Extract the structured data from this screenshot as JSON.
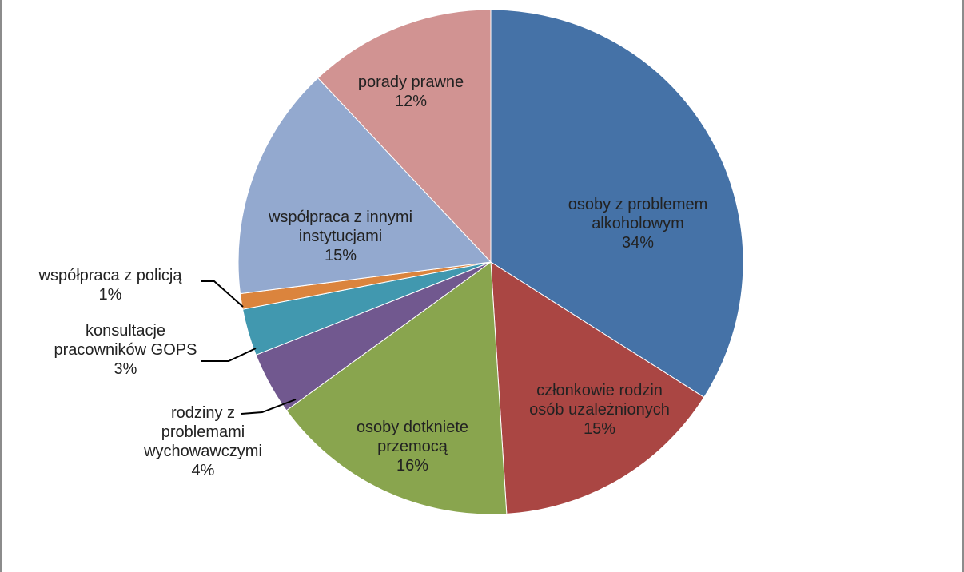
{
  "chart_data": {
    "type": "pie",
    "start_angle_deg": 0,
    "direction": "clockwise",
    "slices": [
      {
        "name": "osoby z problemem alkoholowym",
        "label_lines": [
          "osoby z problemem",
          "alkoholowym",
          "34%"
        ],
        "value": 34,
        "color": "#4572A7"
      },
      {
        "name": "członkowie rodzin osób uzależnionych",
        "label_lines": [
          "członkowie rodzin",
          "osób uzależnionych",
          "15%"
        ],
        "value": 15,
        "color": "#AA4643"
      },
      {
        "name": "osoby dotkniete przemocą",
        "label_lines": [
          "osoby dotkniete",
          "przemocą",
          "16%"
        ],
        "value": 16,
        "color": "#89A54E"
      },
      {
        "name": "rodziny z problemami wychowawczymi",
        "label_lines": [
          "rodziny z",
          "problemami",
          "wychowawczymi",
          "4%"
        ],
        "value": 4,
        "color": "#71588F"
      },
      {
        "name": "konsultacje pracowników GOPS",
        "label_lines": [
          "konsultacje",
          "pracowników GOPS",
          "3%"
        ],
        "value": 3,
        "color": "#4198AF"
      },
      {
        "name": "współpraca z policją",
        "label_lines": [
          "współpraca z policją",
          "1%"
        ],
        "value": 1,
        "color": "#DB843D"
      },
      {
        "name": "współpraca z innymi instytucjami",
        "label_lines": [
          "współpraca z innymi",
          "instytucjami",
          "15%"
        ],
        "value": 15,
        "color": "#93A9CF"
      },
      {
        "name": "porady prawne",
        "label_lines": [
          "porady prawne",
          "12%"
        ],
        "value": 12,
        "color": "#D19392"
      }
    ]
  }
}
